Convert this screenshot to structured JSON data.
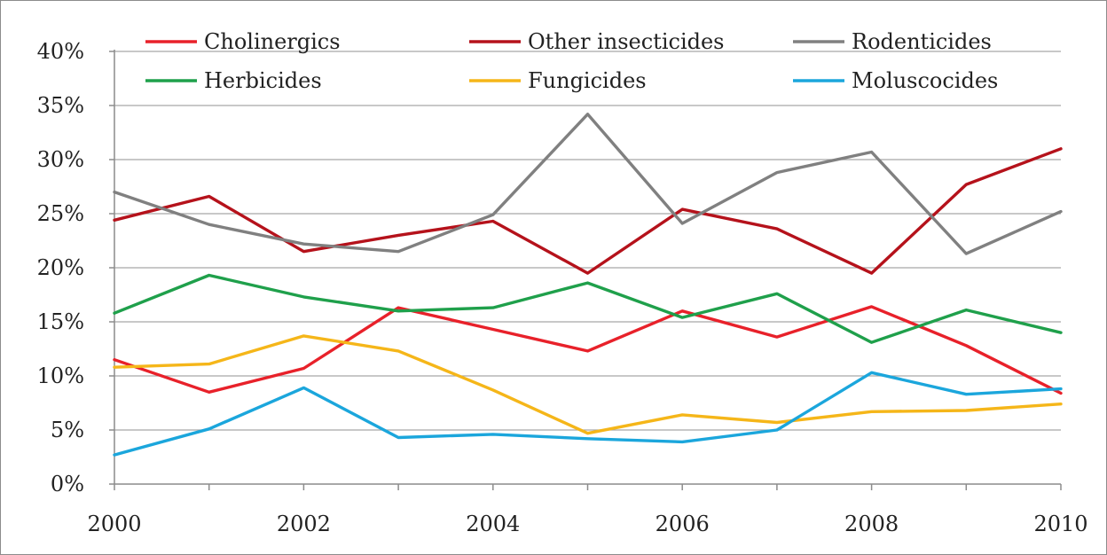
{
  "chart_data": {
    "type": "line",
    "x": [
      2000,
      2001,
      2002,
      2003,
      2004,
      2005,
      2006,
      2007,
      2008,
      2009,
      2010
    ],
    "x_tick_labels": [
      "2000",
      "2002",
      "2004",
      "2006",
      "2008",
      "2010"
    ],
    "x_ticks": [
      2000,
      2002,
      2004,
      2006,
      2008,
      2010
    ],
    "y_tick_labels": [
      "0%",
      "5%",
      "10%",
      "15%",
      "20%",
      "25%",
      "30%",
      "35%",
      "40%"
    ],
    "y_ticks": [
      0,
      5,
      10,
      15,
      20,
      25,
      30,
      35,
      40
    ],
    "xlim": [
      2000,
      2010
    ],
    "ylim": [
      0,
      40
    ],
    "grid": "horizontal",
    "legend_position": "top",
    "title": "",
    "xlabel": "",
    "ylabel": "",
    "series": [
      {
        "name": "Cholinergics",
        "color": "#e8212a",
        "values": [
          11.5,
          8.5,
          10.7,
          16.3,
          14.3,
          12.3,
          16.0,
          13.6,
          16.4,
          12.8,
          8.4
        ]
      },
      {
        "name": "Other insecticides",
        "color": "#b5121b",
        "values": [
          24.4,
          26.6,
          21.5,
          23.0,
          24.3,
          19.5,
          25.4,
          23.6,
          19.5,
          27.7,
          31.0
        ]
      },
      {
        "name": "Rodenticides",
        "color": "#808080",
        "values": [
          27.0,
          24.0,
          22.2,
          21.5,
          24.9,
          34.2,
          24.1,
          28.8,
          30.7,
          21.3,
          25.2
        ]
      },
      {
        "name": "Herbicides",
        "color": "#1fa04b",
        "values": [
          15.8,
          19.3,
          17.3,
          16.0,
          16.3,
          18.6,
          15.4,
          17.6,
          13.1,
          16.1,
          14.0
        ]
      },
      {
        "name": "Fungicides",
        "color": "#f5b619",
        "values": [
          10.8,
          11.1,
          13.7,
          12.3,
          8.7,
          4.7,
          6.4,
          5.7,
          6.7,
          6.8,
          7.4
        ]
      },
      {
        "name": "Moluscocides",
        "color": "#1ba6dc",
        "values": [
          2.7,
          5.1,
          8.9,
          4.3,
          4.6,
          4.2,
          3.9,
          5.0,
          10.3,
          8.3,
          8.8
        ]
      }
    ]
  }
}
